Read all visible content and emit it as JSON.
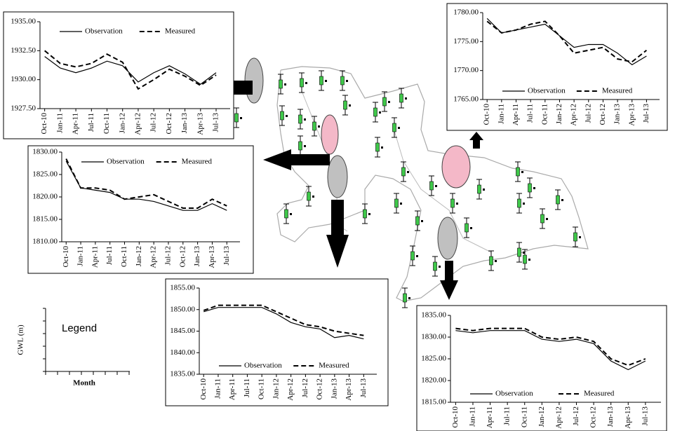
{
  "chart_data": [
    {
      "type": "line",
      "legend": "top",
      "categories": [
        "Oct-10",
        "Jan-11",
        "Apr-11",
        "Jul-11",
        "Oct-11",
        "Jan-12",
        "Apr-12",
        "Jul-12",
        "Oct-12",
        "Jan-13",
        "Apr-13",
        "Jul-13"
      ],
      "ylim": [
        1927.5,
        1935
      ],
      "yticks": [
        {
          "value": 1927.5,
          "label": "1927.50"
        },
        {
          "value": 1930,
          "label": "1930.00"
        },
        {
          "value": 1932.5,
          "label": "1932.50"
        },
        {
          "value": 1935,
          "label": "1935.00"
        }
      ],
      "series": [
        {
          "name": "Observation",
          "color": "#000000",
          "dash": false,
          "values": [
            1932.0,
            1931.0,
            1930.6,
            1931.0,
            1931.6,
            1931.2,
            1929.8,
            1930.6,
            1931.2,
            1930.5,
            1929.6,
            1930.6
          ]
        },
        {
          "name": "Measured",
          "color": "#000000",
          "dash": true,
          "values": [
            1932.5,
            1931.4,
            1931.1,
            1931.4,
            1932.2,
            1931.5,
            1929.2,
            1930.0,
            1930.9,
            1930.3,
            1929.5,
            1930.4
          ]
        }
      ]
    },
    {
      "type": "line",
      "legend": "top",
      "categories": [
        "Oct-10",
        "Jan-11",
        "Apr-11",
        "Jul-11",
        "Oct-11",
        "Jan-12",
        "Apr-12",
        "Jul-12",
        "Oct-12",
        "Jan-13",
        "Apr-13",
        "Jul-13"
      ],
      "ylim": [
        1810,
        1830
      ],
      "yticks": [
        {
          "value": 1810,
          "label": "1810.00"
        },
        {
          "value": 1815,
          "label": "1815.00"
        },
        {
          "value": 1820,
          "label": "1820.00"
        },
        {
          "value": 1825,
          "label": "1825.00"
        },
        {
          "value": 1830,
          "label": "1830.00"
        }
      ],
      "series": [
        {
          "name": "Observation",
          "color": "#000000",
          "dash": false,
          "values": [
            1828,
            1822,
            1821.5,
            1821,
            1819.5,
            1819.5,
            1819,
            1818,
            1817,
            1817,
            1818.5,
            1817
          ]
        },
        {
          "name": "Measured",
          "color": "#000000",
          "dash": true,
          "values": [
            1828.5,
            1822,
            1822,
            1821.5,
            1819.5,
            1820,
            1820.5,
            1819,
            1817.5,
            1817.5,
            1819.5,
            1818
          ]
        }
      ]
    },
    {
      "type": "line",
      "legend": "bottom",
      "categories": [
        "Oct-10",
        "Jan-11",
        "Apr-11",
        "Jul-11",
        "Oct-11",
        "Jan-12",
        "Apr-12",
        "Jul-12",
        "Oct-12",
        "Jan-13",
        "Apr-13",
        "Jul-13"
      ],
      "ylim": [
        1765,
        1780
      ],
      "yticks": [
        {
          "value": 1765,
          "label": "1765.00"
        },
        {
          "value": 1770,
          "label": "1770.00"
        },
        {
          "value": 1775,
          "label": "1775.00"
        },
        {
          "value": 1780,
          "label": "1780.00"
        }
      ],
      "series": [
        {
          "name": "Observation",
          "color": "#000000",
          "dash": false,
          "values": [
            1779,
            1776.5,
            1777,
            1777.5,
            1778,
            1776,
            1774,
            1774.5,
            1774.5,
            1773,
            1771,
            1772.5
          ]
        },
        {
          "name": "Measured",
          "color": "#000000",
          "dash": true,
          "values": [
            1778.5,
            1776.5,
            1777,
            1778,
            1778.5,
            1776,
            1773,
            1773.5,
            1774,
            1772,
            1771.5,
            1773.5
          ]
        }
      ]
    },
    {
      "type": "line",
      "legend": "bottom",
      "categories": [
        "Oct-10",
        "Jan-11",
        "Apr-11",
        "Jul-11",
        "Oct-11",
        "Jan-12",
        "Apr-12",
        "Jul-12",
        "Oct-12",
        "Jan-13",
        "Apr-13",
        "Jul-13"
      ],
      "ylim": [
        1835,
        1855
      ],
      "yticks": [
        {
          "value": 1835,
          "label": "1835.00"
        },
        {
          "value": 1840,
          "label": "1840.00"
        },
        {
          "value": 1845,
          "label": "1845.00"
        },
        {
          "value": 1850,
          "label": "1850.00"
        },
        {
          "value": 1855,
          "label": "1855.00"
        }
      ],
      "series": [
        {
          "name": "Observation",
          "color": "#000000",
          "dash": false,
          "values": [
            1849.5,
            1850.5,
            1850.5,
            1850.5,
            1850.5,
            1849,
            1847,
            1846,
            1845.5,
            1843.5,
            1844,
            1843.2
          ]
        },
        {
          "name": "Measured",
          "color": "#000000",
          "dash": true,
          "values": [
            1849.8,
            1851,
            1851,
            1851,
            1851,
            1849.5,
            1848,
            1846.5,
            1846,
            1845,
            1844.5,
            1844
          ]
        }
      ]
    },
    {
      "type": "line",
      "legend": "bottom",
      "categories": [
        "Oct-10",
        "Jan-11",
        "Apr-11",
        "Jul-11",
        "Oct-11",
        "Jan-12",
        "Apr-12",
        "Jul-12",
        "Oct-12",
        "Jan-13",
        "Apr-13",
        "Jul-13"
      ],
      "ylim": [
        1815,
        1835
      ],
      "yticks": [
        {
          "value": 1815,
          "label": "1815.00"
        },
        {
          "value": 1820,
          "label": "1820.00"
        },
        {
          "value": 1825,
          "label": "1825.00"
        },
        {
          "value": 1830,
          "label": "1830.00"
        },
        {
          "value": 1835,
          "label": "1835.00"
        }
      ],
      "series": [
        {
          "name": "Observation",
          "color": "#000000",
          "dash": false,
          "values": [
            1831.5,
            1831,
            1831.5,
            1831.5,
            1831.5,
            1829.5,
            1829,
            1829.5,
            1828.5,
            1824.5,
            1822.5,
            1824.5
          ]
        },
        {
          "name": "Measured",
          "color": "#000000",
          "dash": true,
          "values": [
            1832,
            1831.5,
            1832,
            1832,
            1832,
            1830,
            1829.5,
            1830,
            1829,
            1825,
            1823.5,
            1825
          ]
        }
      ]
    }
  ],
  "legend_box": {
    "title": "Legend",
    "ylabel": "GWL (m)",
    "xlabel": "Month"
  }
}
